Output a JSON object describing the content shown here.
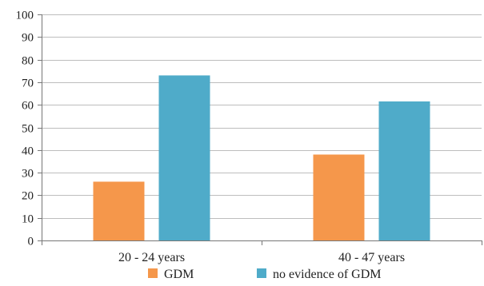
{
  "chart_data": {
    "type": "bar",
    "categories": [
      "20 - 24 years",
      "40 - 47 years"
    ],
    "series": [
      {
        "name": "GDM",
        "values": [
          26,
          38
        ]
      },
      {
        "name": "no evidence of GDM",
        "values": [
          73,
          61.5
        ]
      }
    ],
    "ylim": [
      0,
      100
    ],
    "yticks": [
      0,
      10,
      20,
      30,
      40,
      50,
      60,
      70,
      80,
      90,
      100
    ],
    "grid": true,
    "legend_position": "bottom",
    "colors": {
      "GDM": "#f5974b",
      "no evidence of GDM": "#4fabc9",
      "grid": "#bdbdbd",
      "axis": "#777777"
    }
  }
}
